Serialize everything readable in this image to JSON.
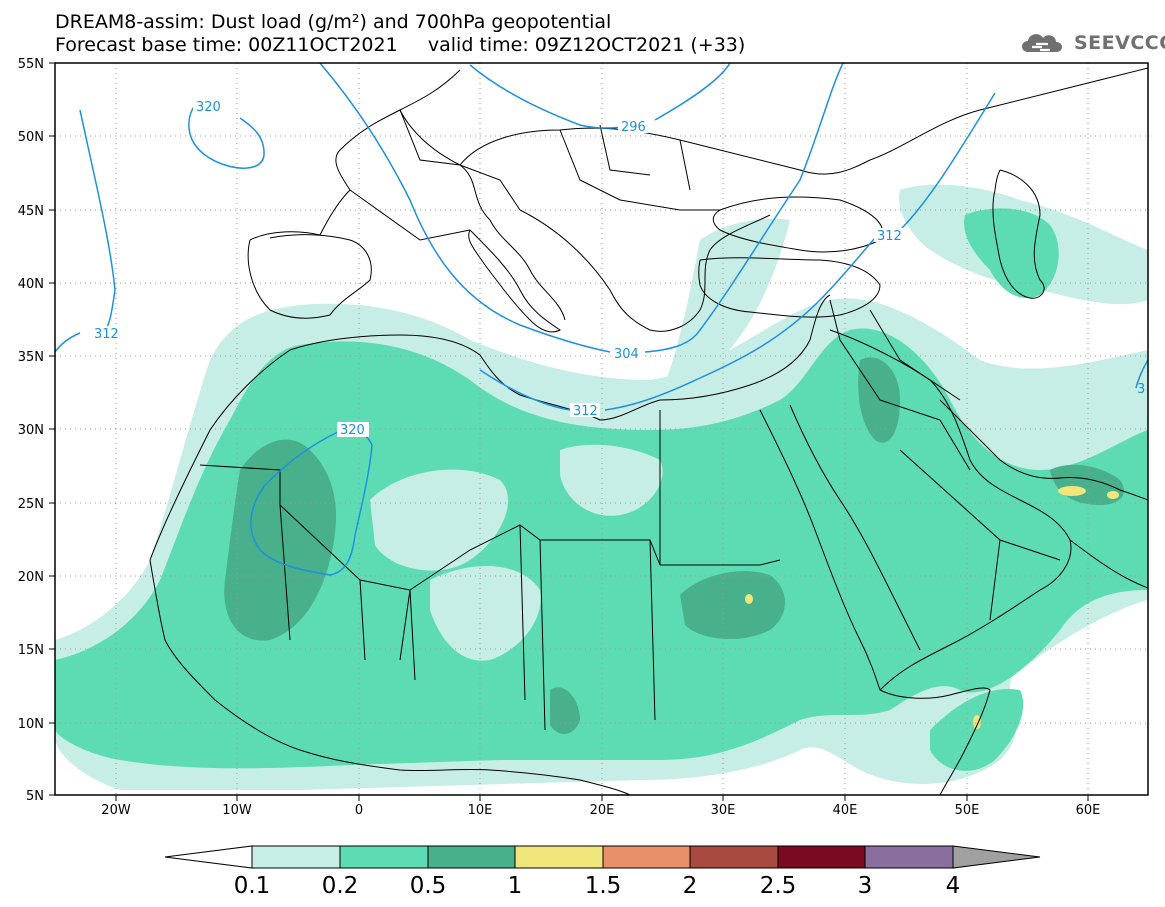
{
  "header": {
    "line1": "DREAM8-assim: Dust load (g/m²) and 700hPa geopotential",
    "line2": "Forecast base time: 00Z11OCT2021     valid time: 09Z12OCT2021 (+33)"
  },
  "logo": {
    "text": "SEEVCCC",
    "icon": "cloud-logo-icon"
  },
  "map": {
    "lat_labels": [
      "55N",
      "50N",
      "45N",
      "40N",
      "35N",
      "30N",
      "25N",
      "20N",
      "15N",
      "10N",
      "5N"
    ],
    "lon_labels": [
      "20W",
      "10W",
      "0",
      "10E",
      "20E",
      "30E",
      "40E",
      "50E",
      "60E"
    ],
    "contour_labels": [
      "320",
      "296",
      "312",
      "312",
      "304",
      "312",
      "320",
      "3"
    ],
    "colors": {
      "land_border": "#000000",
      "contour": "#1e90e0",
      "dust_01": "#c6ede6",
      "dust_02": "#5ddcb4",
      "dust_05": "#48b08a",
      "dust_1": "#f0e67c"
    }
  },
  "colorbar": {
    "labels": [
      "0.1",
      "0.2",
      "0.5",
      "1",
      "1.5",
      "2",
      "2.5",
      "3",
      "4"
    ],
    "colors": [
      "#c6ede6",
      "#5ddcb4",
      "#48b08a",
      "#f0e67c",
      "#e8906a",
      "#a84a40",
      "#7a0a22",
      "#8a6ea0"
    ]
  }
}
